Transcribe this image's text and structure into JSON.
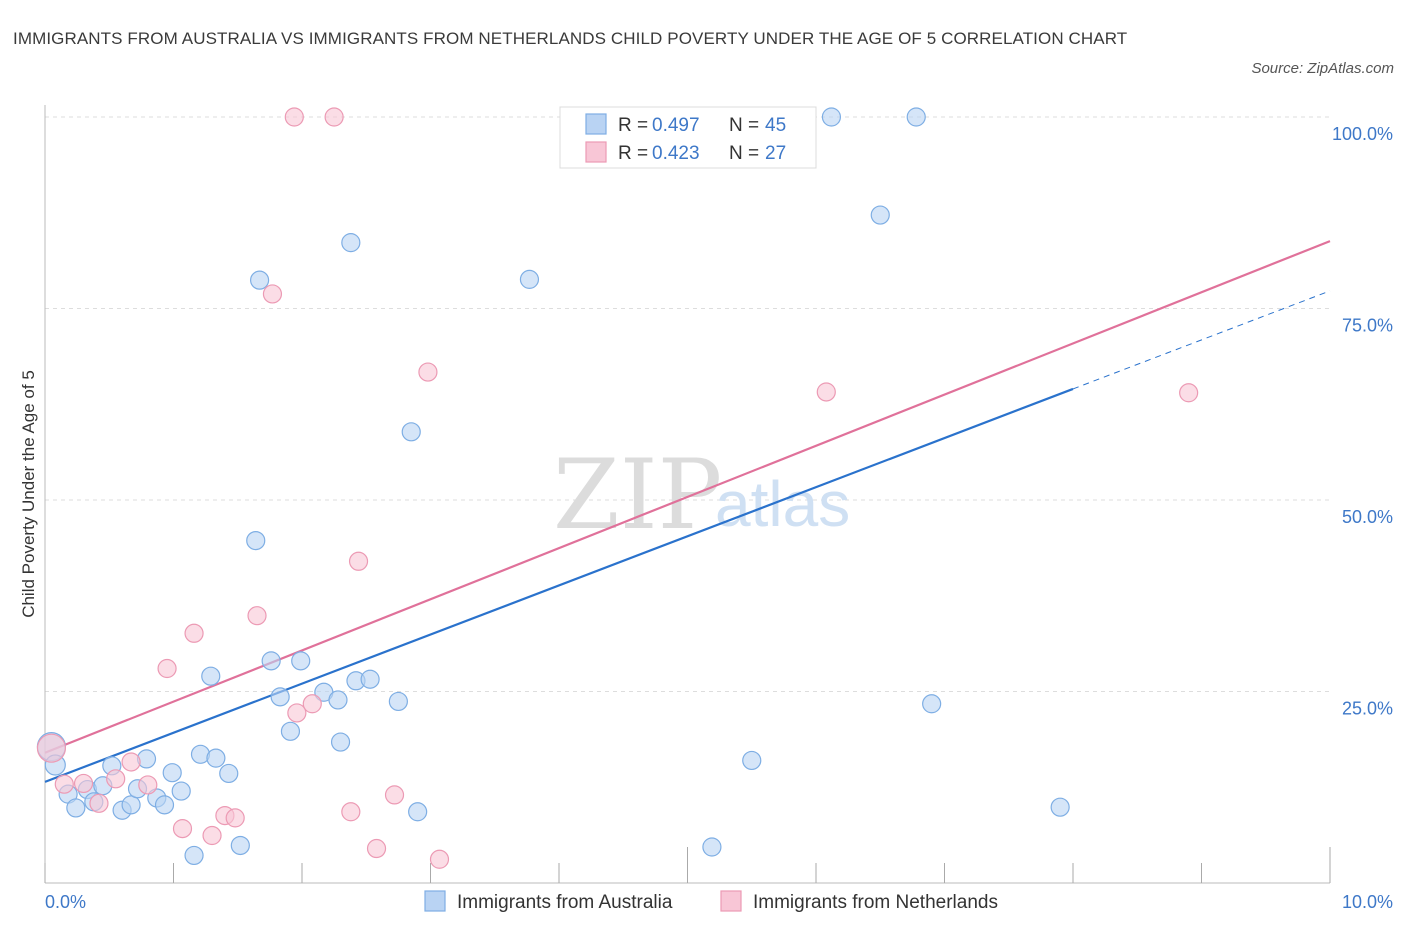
{
  "title": "IMMIGRANTS FROM AUSTRALIA VS IMMIGRANTS FROM NETHERLANDS CHILD POVERTY UNDER THE AGE OF 5 CORRELATION CHART",
  "source": "Source: ZipAtlas.com",
  "watermark": {
    "zip": "ZIP",
    "atlas": "atlas"
  },
  "colors": {
    "australia_fill": "#b9d3f3",
    "australia_stroke": "#7eaee4",
    "australia_line": "#2a72cc",
    "netherlands_fill": "#f8c6d6",
    "netherlands_stroke": "#ec9ab4",
    "netherlands_line": "#e0719a",
    "tick_text": "#3e78c8",
    "grid": "#dddddd"
  },
  "legend": {
    "australia": {
      "r_label": "R = ",
      "r": "0.497",
      "n_label": "N = ",
      "n": "45"
    },
    "netherlands": {
      "r_label": "R = ",
      "r": "0.423",
      "n_label": "N = ",
      "n": "27"
    }
  },
  "bottom_legend": {
    "australia": "Immigrants from Australia",
    "netherlands": "Immigrants from Netherlands"
  },
  "chart_data": {
    "type": "scatter",
    "title": "IMMIGRANTS FROM AUSTRALIA VS IMMIGRANTS FROM NETHERLANDS CHILD POVERTY UNDER THE AGE OF 5 CORRELATION CHART",
    "ylabel": "Child Poverty Under the Age of 5",
    "xlabel": "",
    "xlim": [
      0,
      10
    ],
    "ylim": [
      0,
      100
    ],
    "x_tick_labels": [
      "0.0%",
      "10.0%"
    ],
    "y_ticks": [
      25,
      50,
      75,
      100
    ],
    "y_tick_labels": [
      "25.0%",
      "50.0%",
      "75.0%",
      "100.0%"
    ],
    "grid": true,
    "legend_position": "top-center",
    "series": [
      {
        "name": "Immigrants from Australia",
        "r": 0.497,
        "n": 45,
        "trend": {
          "x0": 0,
          "y0": 13.2,
          "x1": 8.0,
          "y1": 64.5,
          "dash_to_x": 10.0,
          "dash_to_y": 77.3
        },
        "points": [
          [
            0.05,
            17.8,
            14
          ],
          [
            0.08,
            15.4,
            10
          ],
          [
            0.18,
            11.6,
            9
          ],
          [
            0.24,
            9.8,
            9
          ],
          [
            0.33,
            12.2,
            9
          ],
          [
            0.38,
            10.6,
            9
          ],
          [
            0.45,
            12.7,
            9
          ],
          [
            0.52,
            15.3,
            9
          ],
          [
            0.6,
            9.5,
            9
          ],
          [
            0.67,
            10.2,
            9
          ],
          [
            0.72,
            12.3,
            9
          ],
          [
            0.79,
            16.2,
            9
          ],
          [
            0.87,
            11.1,
            9
          ],
          [
            0.93,
            10.2,
            9
          ],
          [
            0.99,
            14.4,
            9
          ],
          [
            1.06,
            12.0,
            9
          ],
          [
            1.16,
            3.6,
            9
          ],
          [
            1.21,
            16.8,
            9
          ],
          [
            1.29,
            27.0,
            9
          ],
          [
            1.33,
            16.3,
            9
          ],
          [
            1.43,
            14.3,
            9
          ],
          [
            1.52,
            4.9,
            9
          ],
          [
            1.64,
            44.7,
            9
          ],
          [
            1.67,
            78.7,
            9
          ],
          [
            1.76,
            29.0,
            9
          ],
          [
            1.83,
            24.3,
            9
          ],
          [
            1.91,
            19.8,
            9
          ],
          [
            1.99,
            29.0,
            9
          ],
          [
            2.17,
            24.9,
            9
          ],
          [
            2.28,
            23.9,
            9
          ],
          [
            2.3,
            18.4,
            9
          ],
          [
            2.38,
            83.6,
            9
          ],
          [
            2.42,
            26.4,
            9
          ],
          [
            2.53,
            26.6,
            9
          ],
          [
            2.75,
            23.7,
            9
          ],
          [
            2.85,
            58.9,
            9
          ],
          [
            2.9,
            9.3,
            9
          ],
          [
            3.77,
            78.8,
            9
          ],
          [
            5.19,
            4.7,
            9
          ],
          [
            5.5,
            16.0,
            9
          ],
          [
            6.12,
            100.0,
            9
          ],
          [
            6.5,
            87.2,
            9
          ],
          [
            6.78,
            100.0,
            9
          ],
          [
            6.9,
            23.4,
            9
          ],
          [
            7.9,
            9.9,
            9
          ]
        ]
      },
      {
        "name": "Immigrants from Netherlands",
        "r": 0.423,
        "n": 27,
        "trend": {
          "x0": 0,
          "y0": 17.0,
          "x1": 10.0,
          "y1": 83.8
        },
        "points": [
          [
            0.05,
            17.6,
            14
          ],
          [
            0.15,
            12.9,
            9
          ],
          [
            0.3,
            13.0,
            9
          ],
          [
            0.42,
            10.4,
            9
          ],
          [
            0.55,
            13.6,
            9
          ],
          [
            0.67,
            15.8,
            9
          ],
          [
            0.8,
            12.8,
            9
          ],
          [
            0.95,
            28.0,
            9
          ],
          [
            1.07,
            7.1,
            9
          ],
          [
            1.16,
            32.6,
            9
          ],
          [
            1.3,
            6.2,
            9
          ],
          [
            1.4,
            8.8,
            9
          ],
          [
            1.48,
            8.5,
            9
          ],
          [
            1.65,
            34.9,
            9
          ],
          [
            1.77,
            76.9,
            9
          ],
          [
            1.94,
            100.0,
            9
          ],
          [
            1.96,
            22.2,
            9
          ],
          [
            2.08,
            23.4,
            9
          ],
          [
            2.25,
            100.0,
            9
          ],
          [
            2.38,
            9.3,
            9
          ],
          [
            2.44,
            42.0,
            9
          ],
          [
            2.58,
            4.5,
            9
          ],
          [
            2.72,
            11.5,
            9
          ],
          [
            2.98,
            66.7,
            9
          ],
          [
            3.07,
            3.1,
            9
          ],
          [
            6.08,
            64.1,
            9
          ],
          [
            8.9,
            64.0,
            9
          ]
        ]
      }
    ]
  }
}
